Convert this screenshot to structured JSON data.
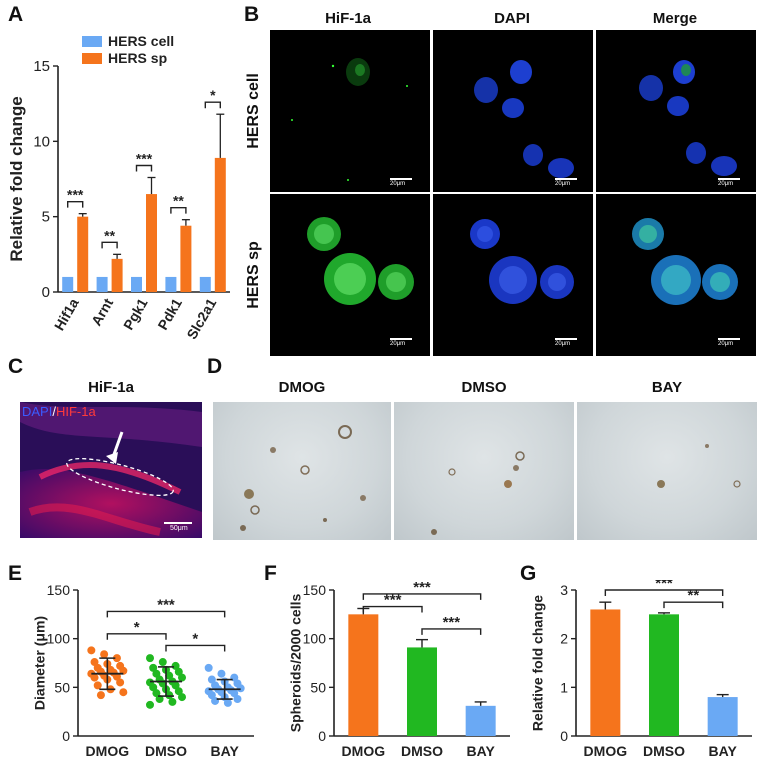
{
  "panels": {
    "A": "A",
    "B": "B",
    "C": "C",
    "D": "D",
    "E": "E",
    "F": "F",
    "G": "G"
  },
  "panel_b": {
    "columns": [
      "HiF-1a",
      "DAPI",
      "Merge"
    ],
    "rows": [
      "HERS cell",
      "HERS sp"
    ],
    "scale": "20μm"
  },
  "panel_c": {
    "title": "HiF-1a",
    "stain_dapi": "DAPI",
    "stain_sep": "/",
    "stain_hif": "HIF-1a",
    "scale": "50μm"
  },
  "panel_d": {
    "columns": [
      "DMOG",
      "DMSO",
      "BAY"
    ]
  },
  "colors": {
    "hers_cell": "#6aa9f4",
    "hers_sp": "#f5741c",
    "dmog": "#f5741c",
    "dmso": "#21b821",
    "bay": "#6aa9f4"
  },
  "chart_data": [
    {
      "id": "A",
      "type": "bar",
      "categories": [
        "Hif1a",
        "Arnt",
        "Pgk1",
        "Pdk1",
        "Slc2a1"
      ],
      "series": [
        {
          "name": "HERS cell",
          "values": [
            1,
            1,
            1,
            1,
            1
          ]
        },
        {
          "name": "HERS sp",
          "values": [
            5.0,
            2.2,
            6.5,
            4.4,
            8.9
          ],
          "errors": [
            0.2,
            0.3,
            1.1,
            0.4,
            2.9
          ]
        }
      ],
      "significance": [
        "***",
        "**",
        "***",
        "**",
        "*"
      ],
      "ylabel": "Relative fold change",
      "ylim": [
        0,
        15
      ],
      "yticks": [
        0,
        5,
        10,
        15
      ],
      "legend_position": "top"
    },
    {
      "id": "E",
      "type": "scatter",
      "categories": [
        "DMOG",
        "DMSO",
        "BAY"
      ],
      "means": [
        64,
        56,
        48
      ],
      "sd": [
        16,
        15,
        10
      ],
      "ylabel": "Diameter (μm)",
      "ylim": [
        0,
        150
      ],
      "yticks": [
        0,
        50,
        100,
        150
      ],
      "points": [
        [
          88,
          84,
          80,
          76,
          74,
          72,
          70,
          68,
          67,
          66,
          65,
          64,
          62,
          61,
          60,
          58,
          55,
          52,
          48,
          45,
          42
        ],
        [
          80,
          76,
          72,
          70,
          68,
          66,
          64,
          62,
          60,
          58,
          56,
          55,
          54,
          52,
          50,
          48,
          46,
          44,
          42,
          40,
          38,
          35,
          32
        ],
        [
          70,
          64,
          60,
          58,
          56,
          54,
          52,
          50,
          49,
          48,
          47,
          46,
          45,
          44,
          42,
          40,
          38,
          36,
          34
        ]
      ],
      "significance": [
        {
          "from": 0,
          "to": 2,
          "label": "***"
        },
        {
          "from": 0,
          "to": 1,
          "label": "*"
        },
        {
          "from": 1,
          "to": 2,
          "label": "*"
        }
      ]
    },
    {
      "id": "F",
      "type": "bar",
      "categories": [
        "DMOG",
        "DMSO",
        "BAY"
      ],
      "values": [
        125,
        91,
        31
      ],
      "errors": [
        6,
        8,
        4
      ],
      "ylabel": "Spheroids/2000 cells",
      "ylim": [
        0,
        150
      ],
      "yticks": [
        0,
        50,
        100,
        150
      ],
      "significance": [
        {
          "from": 0,
          "to": 2,
          "label": "***"
        },
        {
          "from": 0,
          "to": 1,
          "label": "***"
        },
        {
          "from": 1,
          "to": 2,
          "label": "***"
        }
      ]
    },
    {
      "id": "G",
      "type": "bar",
      "categories": [
        "DMOG",
        "DMSO",
        "BAY"
      ],
      "values": [
        2.6,
        2.5,
        0.8
      ],
      "errors": [
        0.15,
        0.03,
        0.05
      ],
      "ylabel": "Relative fold change",
      "ylim": [
        0,
        3
      ],
      "yticks": [
        0,
        1,
        2,
        3
      ],
      "significance": [
        {
          "from": 0,
          "to": 2,
          "label": "***"
        },
        {
          "from": 1,
          "to": 2,
          "label": "**"
        }
      ]
    }
  ]
}
